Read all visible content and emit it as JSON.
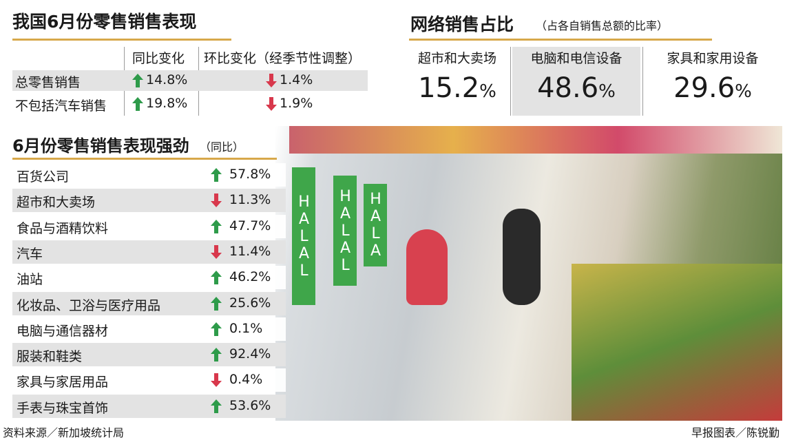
{
  "left_table": {
    "title": "我国6月份零售销售表现",
    "headers": [
      "同比变化",
      "环比变化（经季节性调整）"
    ],
    "rows": [
      {
        "label": "总零售销售",
        "cells": [
          {
            "text": "14.8%",
            "trend": "up"
          },
          {
            "text": "1.4%",
            "trend": "down"
          }
        ]
      },
      {
        "label": "不包括汽车销售",
        "cells": [
          {
            "text": "19.8%",
            "trend": "up"
          },
          {
            "text": "1.9%",
            "trend": "down"
          }
        ]
      }
    ]
  },
  "online": {
    "title": "网络销售占比",
    "subtitle": "（占各自销售总额的比率）",
    "items": [
      {
        "label": "超市和大卖场",
        "value": "15.2",
        "unit": "%"
      },
      {
        "label": "电脑和电信设备",
        "value": "48.6",
        "unit": "%"
      },
      {
        "label": "家具和家用设备",
        "value": "29.6",
        "unit": "%"
      }
    ]
  },
  "category_table": {
    "title": "6月份零售销售表现强劲",
    "subtitle": "（同比）",
    "rows": [
      {
        "label": "百货公司",
        "text": "57.8%",
        "trend": "up"
      },
      {
        "label": "超市和大卖场",
        "text": "11.3%",
        "trend": "down"
      },
      {
        "label": "食品与酒精饮料",
        "text": "47.7%",
        "trend": "up"
      },
      {
        "label": "汽车",
        "text": "11.4%",
        "trend": "down"
      },
      {
        "label": "油站",
        "text": "46.2%",
        "trend": "up"
      },
      {
        "label": "化妆品、卫浴与医疗用品",
        "text": "25.6%",
        "trend": "up"
      },
      {
        "label": "电脑与通信器材",
        "text": "0.1%",
        "trend": "up"
      },
      {
        "label": "服装和鞋类",
        "text": "92.4%",
        "trend": "up"
      },
      {
        "label": "家具与家居用品",
        "text": "0.4%",
        "trend": "down"
      },
      {
        "label": "手表与珠宝首饰",
        "text": "53.6%",
        "trend": "up"
      }
    ]
  },
  "photo": {
    "signs": [
      "HALAL",
      "HALAL",
      "HALA"
    ]
  },
  "footer": {
    "source": "资料来源／新加坡统计局",
    "credit": "早报图表／陈锐勤"
  }
}
